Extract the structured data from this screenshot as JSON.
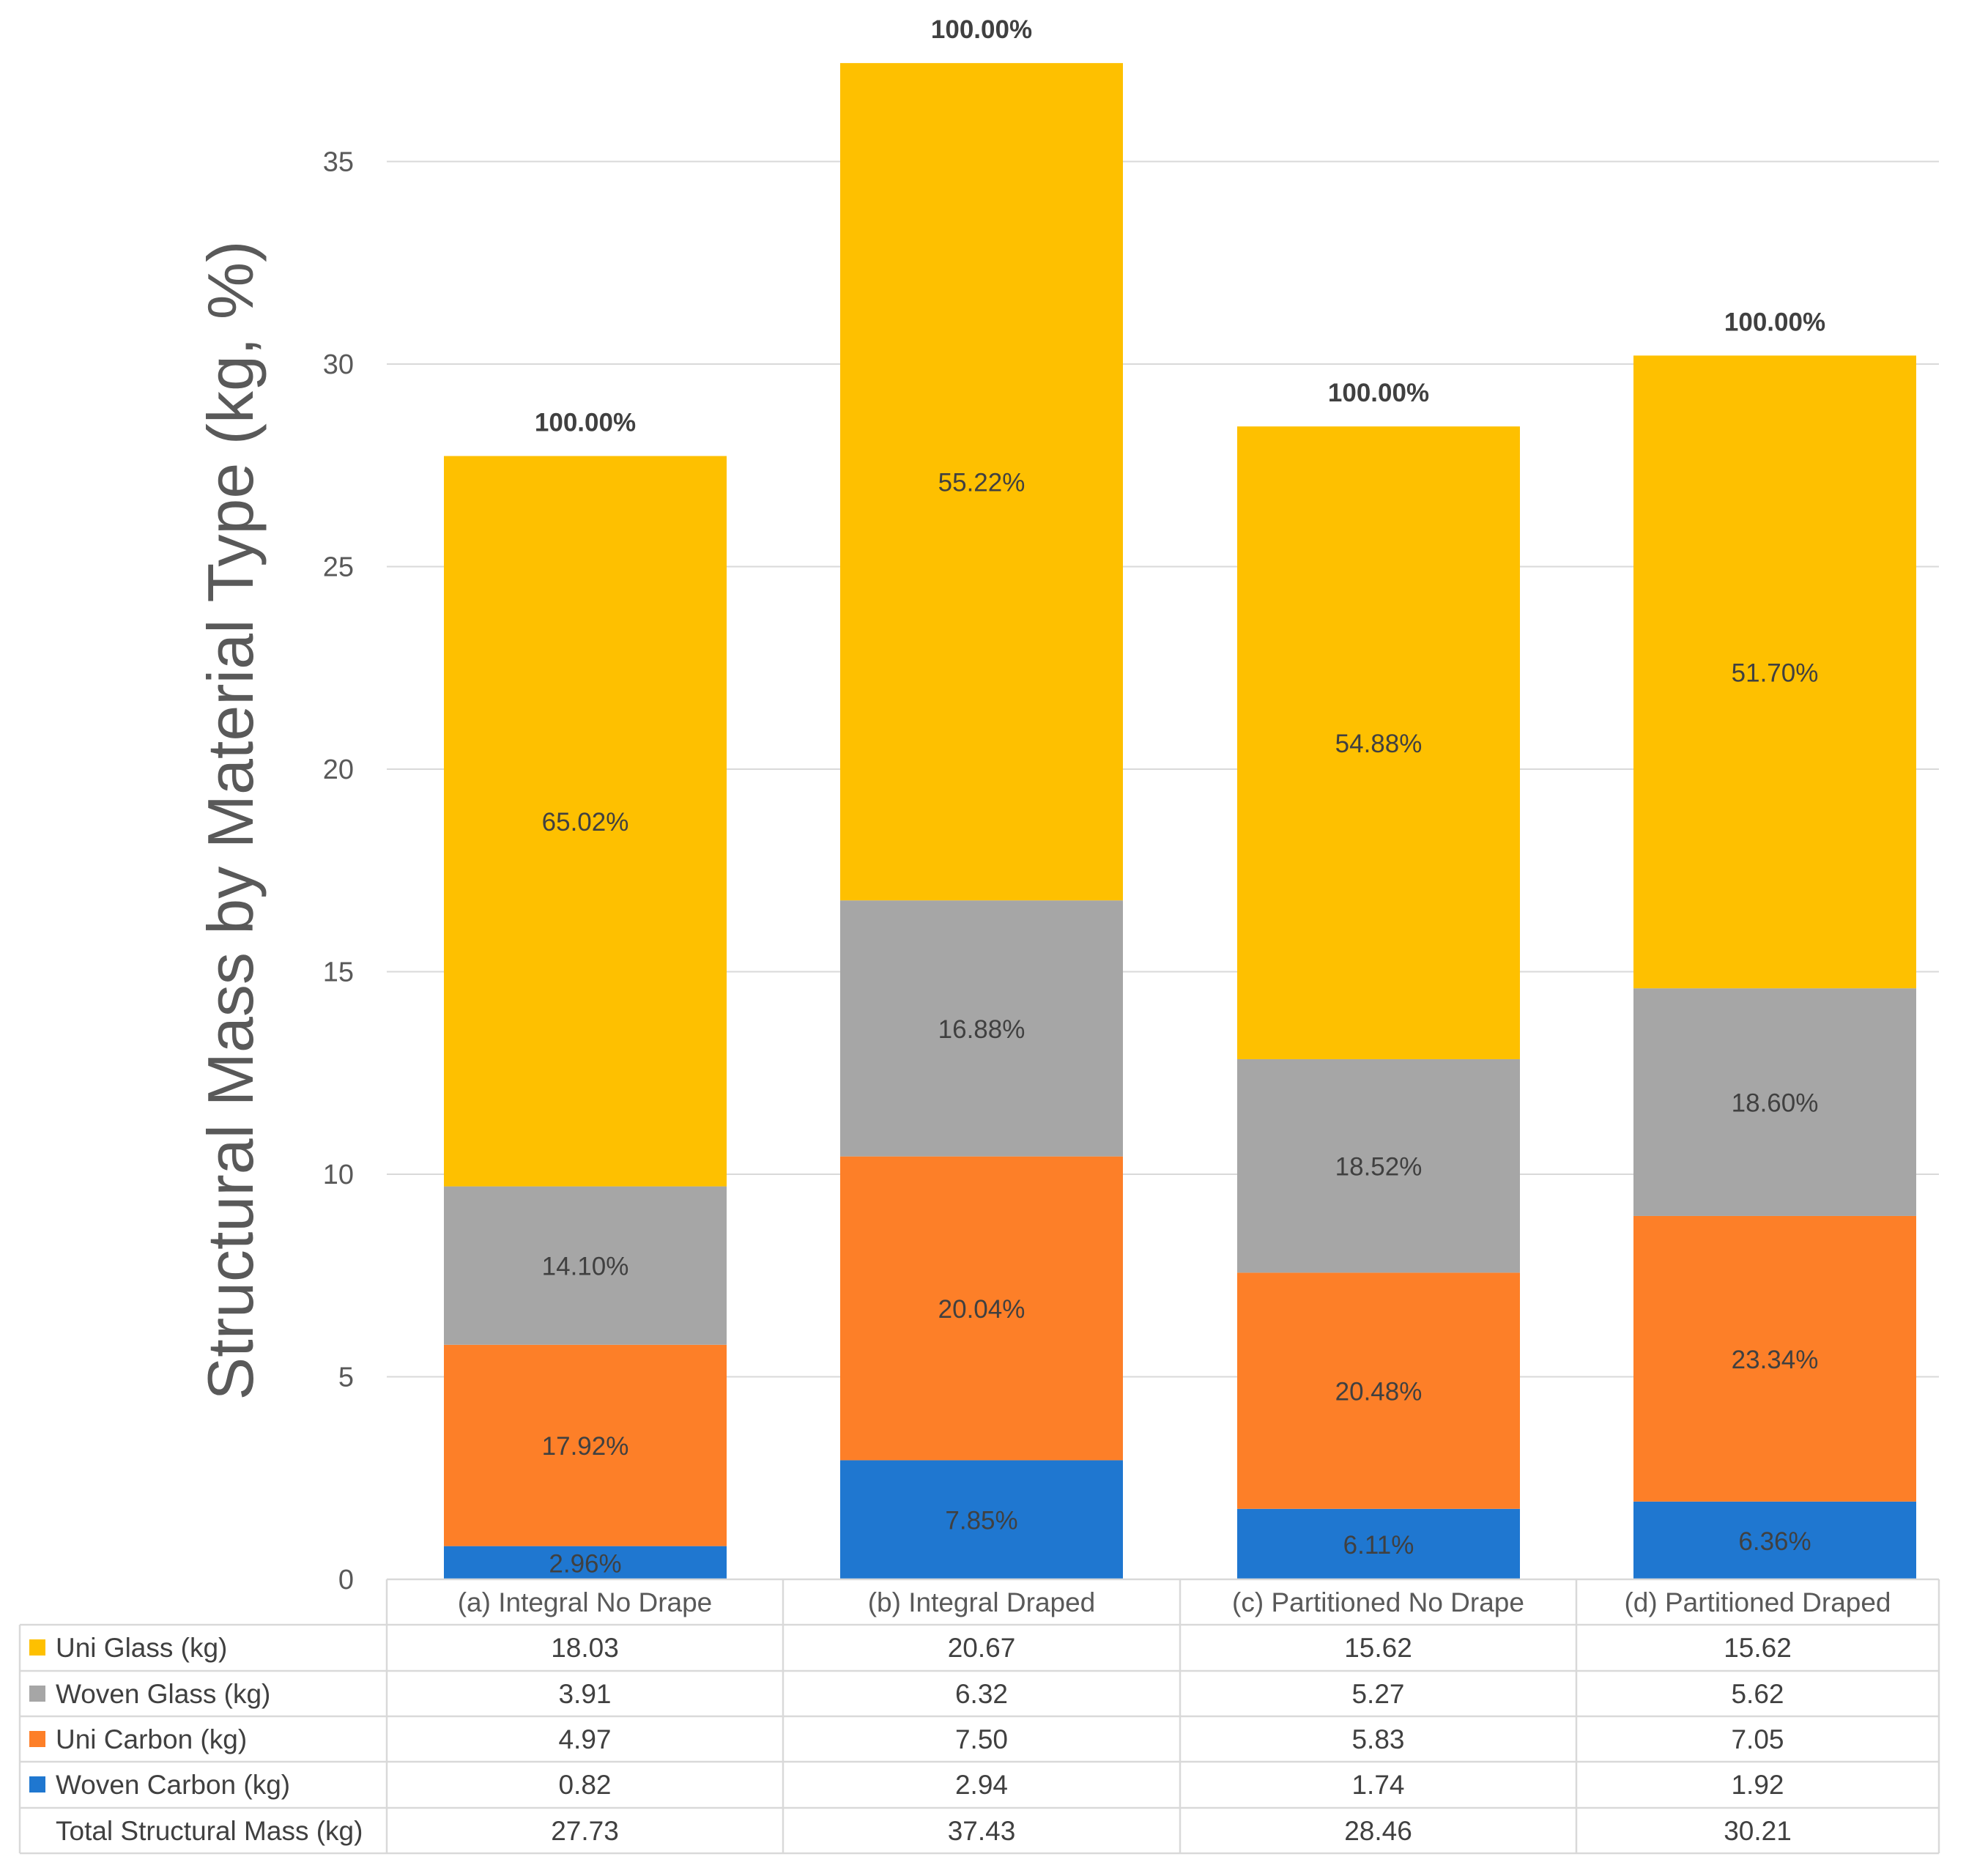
{
  "chart_data": {
    "type": "bar",
    "stacked": true,
    "ylabel": "Structural Mass by Material Type (kg, %)",
    "ylim": [
      0,
      38
    ],
    "yticks": [
      0,
      5,
      10,
      15,
      20,
      25,
      30,
      35
    ],
    "grid": true,
    "categories": [
      "(a) Integral No Drape",
      "(b) Integral Draped",
      "(c) Partitioned No Drape",
      "(d) Partitioned Draped"
    ],
    "series": [
      {
        "name": "Woven Carbon (kg)",
        "color": "#1f77d0",
        "values": [
          0.82,
          2.94,
          1.74,
          1.92
        ],
        "pct_labels": [
          "2.96%",
          "7.85%",
          "6.11%",
          "6.36%"
        ]
      },
      {
        "name": "Uni Carbon (kg)",
        "color": "#fd7f28",
        "values": [
          4.97,
          7.5,
          5.83,
          7.05
        ],
        "pct_labels": [
          "17.92%",
          "20.04%",
          "20.48%",
          "23.34%"
        ]
      },
      {
        "name": "Woven Glass (kg)",
        "color": "#a6a6a6",
        "values": [
          3.91,
          6.32,
          5.27,
          5.62
        ],
        "pct_labels": [
          "14.10%",
          "16.88%",
          "18.52%",
          "18.60%"
        ]
      },
      {
        "name": "Uni Glass (kg)",
        "color": "#fec000",
        "values": [
          18.03,
          20.67,
          15.62,
          15.62
        ],
        "pct_labels": [
          "65.02%",
          "55.22%",
          "54.88%",
          "51.70%"
        ]
      }
    ],
    "total_pct_labels": [
      "100.00%",
      "100.00%",
      "100.00%",
      "100.00%"
    ],
    "data_table": {
      "rows": [
        {
          "label": "Uni Glass (kg)",
          "color": "#fec000",
          "values": [
            "18.03",
            "20.67",
            "15.62",
            "15.62"
          ]
        },
        {
          "label": "Woven Glass (kg)",
          "color": "#a6a6a6",
          "values": [
            "3.91",
            "6.32",
            "5.27",
            "5.62"
          ]
        },
        {
          "label": "Uni Carbon (kg)",
          "color": "#fd7f28",
          "values": [
            "4.97",
            "7.50",
            "5.83",
            "7.05"
          ]
        },
        {
          "label": "Woven Carbon (kg)",
          "color": "#1f77d0",
          "values": [
            "0.82",
            "2.94",
            "1.74",
            "1.92"
          ]
        },
        {
          "label": "Total Structural Mass (kg)",
          "color": null,
          "values": [
            "27.73",
            "37.43",
            "28.46",
            "30.21"
          ]
        }
      ]
    }
  }
}
